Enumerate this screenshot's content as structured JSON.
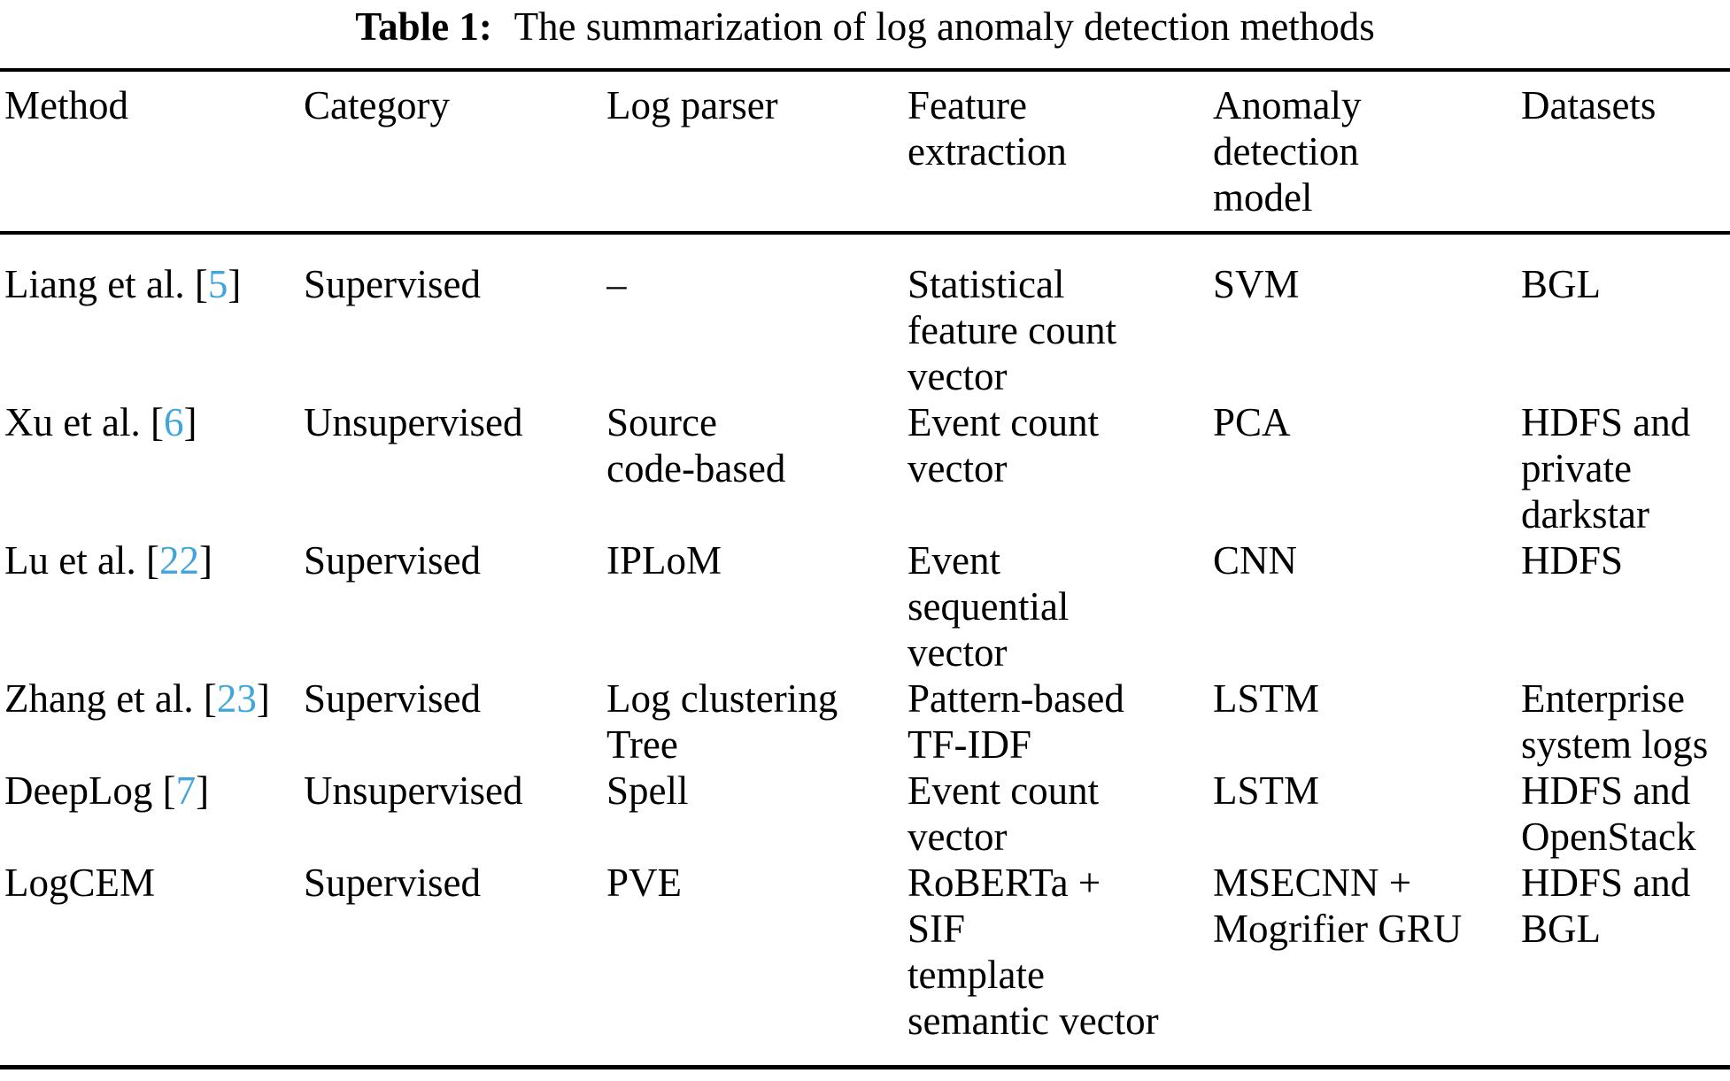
{
  "caption": {
    "label": "Table 1:",
    "text": "The summarization of log anomaly detection methods"
  },
  "colors": {
    "citation": "#3FA5DA",
    "rule": "#000000",
    "background": "#ffffff",
    "text": "#000000"
  },
  "table": {
    "columns": [
      {
        "label": "Method"
      },
      {
        "label": "Category"
      },
      {
        "label": "Log parser"
      },
      {
        "label": "Feature\nextraction"
      },
      {
        "label": "Anomaly\ndetection\nmodel"
      },
      {
        "label": "Datasets"
      }
    ],
    "rows": [
      {
        "method": {
          "pre": "Liang et al. [",
          "ref": "5",
          "post": "]"
        },
        "category": "Supervised",
        "log_parser": "–",
        "feature_extraction": "Statistical\nfeature count\nvector",
        "anomaly_model": "SVM",
        "datasets": "BGL"
      },
      {
        "method": {
          "pre": "Xu et al. [",
          "ref": "6",
          "post": "]"
        },
        "category": "Unsupervised",
        "log_parser": "Source\ncode-based",
        "feature_extraction": "Event count\nvector",
        "anomaly_model": "PCA",
        "datasets": "HDFS and\nprivate\ndarkstar"
      },
      {
        "method": {
          "pre": "Lu et al. [",
          "ref": "22",
          "post": "]"
        },
        "category": "Supervised",
        "log_parser": "IPLoM",
        "feature_extraction": "Event\nsequential\nvector",
        "anomaly_model": "CNN",
        "datasets": "HDFS"
      },
      {
        "method": {
          "pre": "Zhang et al. [",
          "ref": "23",
          "post": "]"
        },
        "category": "Supervised",
        "log_parser": "Log clustering\nTree",
        "feature_extraction": "Pattern-based\nTF-IDF",
        "anomaly_model": "LSTM",
        "datasets": "Enterprise\nsystem logs"
      },
      {
        "method": {
          "pre": "DeepLog [",
          "ref": "7",
          "post": "]"
        },
        "category": "Unsupervised",
        "log_parser": "Spell",
        "feature_extraction": "Event count\nvector",
        "anomaly_model": "LSTM",
        "datasets": "HDFS and\nOpenStack"
      },
      {
        "method": {
          "pre": "LogCEM",
          "ref": "",
          "post": ""
        },
        "category": "Supervised",
        "log_parser": "PVE",
        "feature_extraction": "RoBERTa +\nSIF\ntemplate\nsemantic vector",
        "anomaly_model": "MSECNN +\nMogrifier GRU",
        "datasets": "HDFS and\nBGL"
      }
    ]
  }
}
